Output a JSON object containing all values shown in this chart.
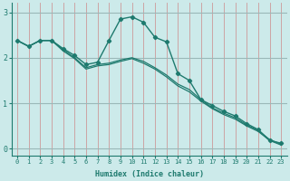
{
  "xlabel": "Humidex (Indice chaleur)",
  "xlim": [
    -0.5,
    23.5
  ],
  "ylim": [
    -0.15,
    3.2
  ],
  "yticks": [
    0,
    1,
    2,
    3
  ],
  "xticks": [
    0,
    1,
    2,
    3,
    4,
    5,
    6,
    7,
    8,
    9,
    10,
    11,
    12,
    13,
    14,
    15,
    16,
    17,
    18,
    19,
    20,
    21,
    22,
    23
  ],
  "bg_color": "#cceaea",
  "line_color": "#1e7a6e",
  "grid_color_v": "#cc9999",
  "grid_color_h": "#9ab8b8",
  "line1_x": [
    0,
    1,
    2,
    3,
    4,
    5,
    6,
    7,
    8,
    9,
    10,
    11,
    12,
    13,
    14,
    15,
    16,
    17,
    18,
    19,
    20,
    21,
    22,
    23
  ],
  "line1_y": [
    2.38,
    2.25,
    2.38,
    2.38,
    2.2,
    2.05,
    1.85,
    1.9,
    2.38,
    2.85,
    2.9,
    2.78,
    2.45,
    2.35,
    1.65,
    1.5,
    1.08,
    0.95,
    0.82,
    0.72,
    0.55,
    0.42,
    0.18,
    0.12
  ],
  "line2_x": [
    0,
    1,
    2,
    3,
    4,
    5,
    6,
    7,
    8,
    9,
    10,
    11,
    12,
    13,
    14,
    15,
    16,
    17,
    18,
    19,
    20,
    21,
    22,
    23
  ],
  "line2_y": [
    2.38,
    2.25,
    2.38,
    2.38,
    2.18,
    2.0,
    1.78,
    1.85,
    1.88,
    1.95,
    2.0,
    1.92,
    1.78,
    1.62,
    1.42,
    1.3,
    1.08,
    0.9,
    0.78,
    0.68,
    0.52,
    0.4,
    0.2,
    0.1
  ],
  "line3_x": [
    0,
    1,
    2,
    3,
    4,
    5,
    6,
    7,
    8,
    9,
    10,
    11,
    12,
    13,
    14,
    15,
    16,
    17,
    18,
    19,
    20,
    21,
    22,
    23
  ],
  "line3_y": [
    2.38,
    2.25,
    2.38,
    2.38,
    2.15,
    1.98,
    1.75,
    1.82,
    1.85,
    1.92,
    1.98,
    1.88,
    1.75,
    1.58,
    1.38,
    1.25,
    1.05,
    0.88,
    0.75,
    0.65,
    0.5,
    0.38,
    0.18,
    0.08
  ]
}
